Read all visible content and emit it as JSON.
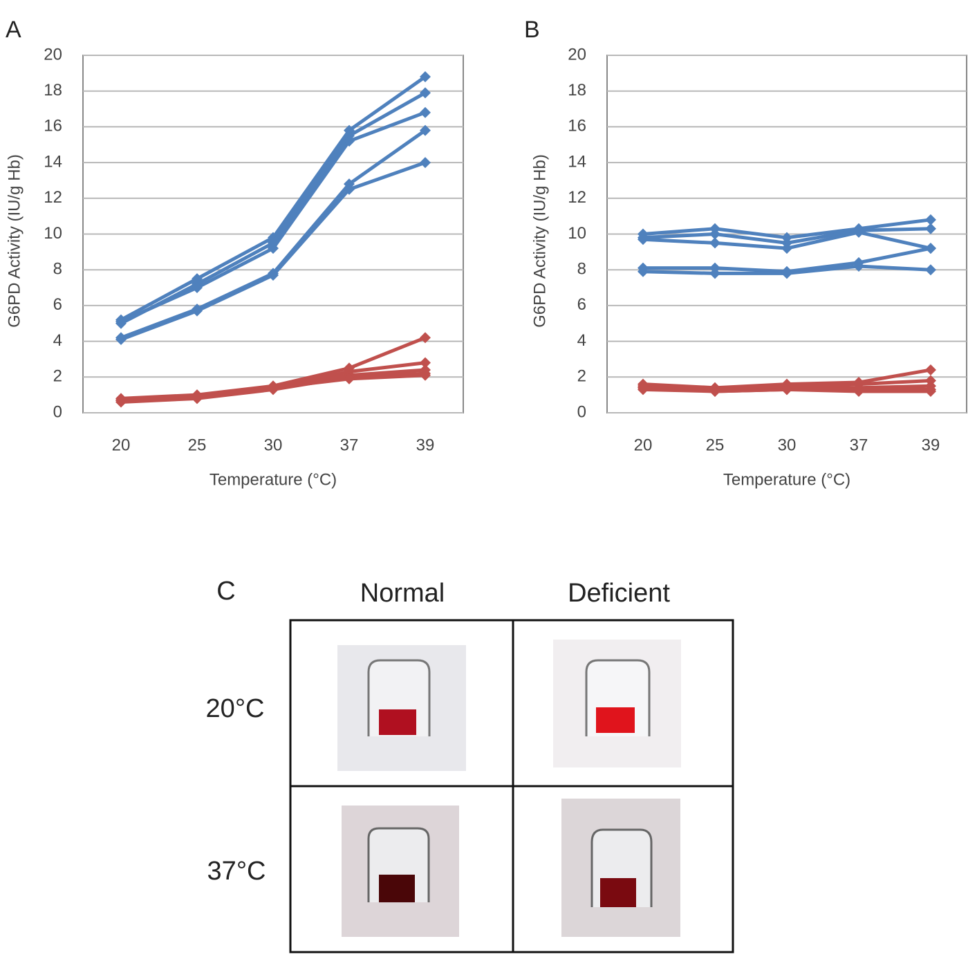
{
  "chart_data": [
    {
      "type": "line",
      "panel_label": "A",
      "y_label": "G6PD Activity (IU/g Hb)",
      "x_label": "Temperature (°C)",
      "categories": [
        "20",
        "25",
        "30",
        "37",
        "39"
      ],
      "ylim": [
        0,
        20
      ],
      "yticks": [
        0,
        2,
        4,
        6,
        8,
        10,
        12,
        14,
        16,
        18,
        20
      ],
      "grid": true,
      "series": [
        {
          "color": "#4f81bd",
          "values": [
            5.2,
            7.5,
            9.8,
            15.8,
            18.8
          ]
        },
        {
          "color": "#4f81bd",
          "values": [
            5.0,
            7.2,
            9.5,
            15.5,
            17.9
          ]
        },
        {
          "color": "#4f81bd",
          "values": [
            5.1,
            7.0,
            9.2,
            15.2,
            16.8
          ]
        },
        {
          "color": "#4f81bd",
          "values": [
            4.2,
            5.8,
            7.8,
            12.8,
            15.8
          ]
        },
        {
          "color": "#4f81bd",
          "values": [
            4.1,
            5.7,
            7.7,
            12.5,
            14.0
          ]
        },
        {
          "color": "#c0504d",
          "values": [
            0.8,
            1.0,
            1.5,
            2.5,
            4.2
          ]
        },
        {
          "color": "#c0504d",
          "values": [
            0.7,
            0.9,
            1.4,
            2.3,
            2.8
          ]
        },
        {
          "color": "#c0504d",
          "values": [
            0.7,
            0.9,
            1.4,
            2.1,
            2.4
          ]
        },
        {
          "color": "#c0504d",
          "values": [
            0.6,
            0.8,
            1.3,
            2.0,
            2.2
          ]
        },
        {
          "color": "#c0504d",
          "values": [
            0.7,
            0.9,
            1.4,
            1.9,
            2.1
          ]
        }
      ]
    },
    {
      "type": "line",
      "panel_label": "B",
      "y_label": "G6PD Activity (IU/g Hb)",
      "x_label": "Temperature (°C)",
      "categories": [
        "20",
        "25",
        "30",
        "37",
        "39"
      ],
      "ylim": [
        0,
        20
      ],
      "yticks": [
        0,
        2,
        4,
        6,
        8,
        10,
        12,
        14,
        16,
        18,
        20
      ],
      "grid": true,
      "series": [
        {
          "color": "#4f81bd",
          "values": [
            10.0,
            10.3,
            9.8,
            10.3,
            10.8
          ]
        },
        {
          "color": "#4f81bd",
          "values": [
            9.8,
            10.0,
            9.5,
            10.2,
            10.3
          ]
        },
        {
          "color": "#4f81bd",
          "values": [
            9.7,
            9.5,
            9.2,
            10.1,
            9.2
          ]
        },
        {
          "color": "#4f81bd",
          "values": [
            8.1,
            8.1,
            7.9,
            8.4,
            9.2
          ]
        },
        {
          "color": "#4f81bd",
          "values": [
            7.9,
            7.8,
            7.8,
            8.2,
            8.0
          ]
        },
        {
          "color": "#c0504d",
          "values": [
            1.6,
            1.4,
            1.6,
            1.7,
            2.4
          ]
        },
        {
          "color": "#c0504d",
          "values": [
            1.5,
            1.3,
            1.5,
            1.6,
            1.8
          ]
        },
        {
          "color": "#c0504d",
          "values": [
            1.4,
            1.3,
            1.4,
            1.4,
            1.5
          ]
        },
        {
          "color": "#c0504d",
          "values": [
            1.4,
            1.2,
            1.3,
            1.3,
            1.3
          ]
        },
        {
          "color": "#c0504d",
          "values": [
            1.3,
            1.2,
            1.3,
            1.2,
            1.2
          ]
        }
      ]
    }
  ],
  "panel_c": {
    "label": "C",
    "columns": [
      "Normal",
      "Deficient"
    ],
    "rows": [
      "20°C",
      "37°C"
    ]
  }
}
